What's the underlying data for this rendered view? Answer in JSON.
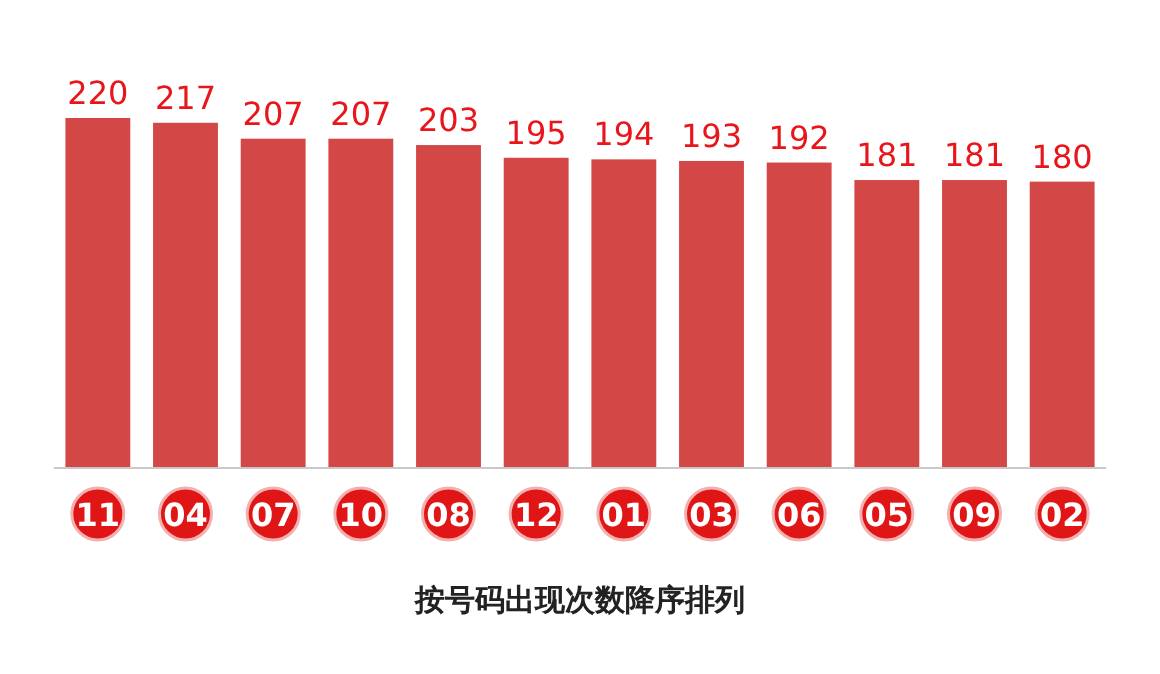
{
  "chart_data": {
    "type": "bar",
    "title": "按号码出现次数降序排列",
    "categories": [
      "11",
      "04",
      "07",
      "10",
      "08",
      "12",
      "01",
      "03",
      "06",
      "05",
      "09",
      "02"
    ],
    "values": [
      220,
      217,
      207,
      207,
      203,
      195,
      194,
      193,
      192,
      181,
      181,
      180
    ],
    "color": "#d44747",
    "ylim": [
      0,
      220
    ],
    "tick_labels": "x",
    "data_labels": true
  }
}
